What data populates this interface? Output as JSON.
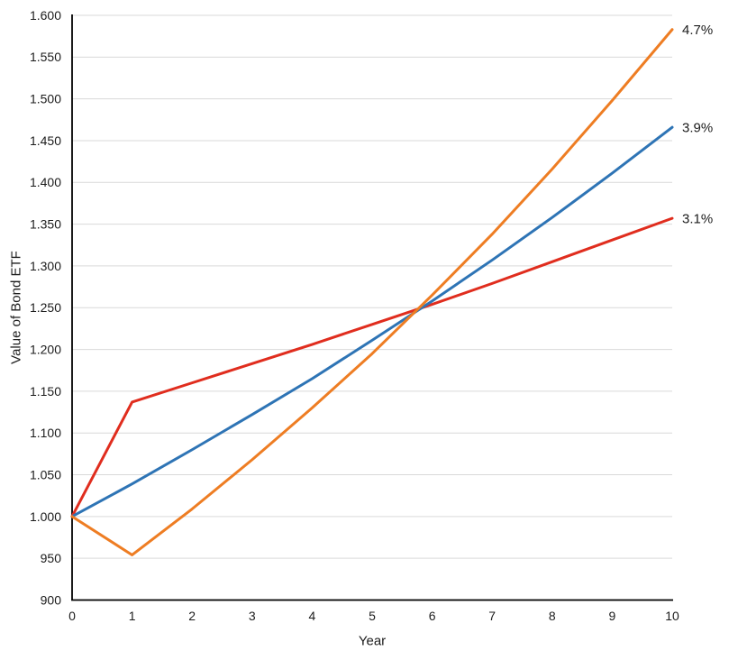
{
  "chart_data": {
    "type": "line",
    "title": "",
    "xlabel": "Year",
    "ylabel": "Value of Bond ETF",
    "xlim": [
      0,
      10
    ],
    "ylim": [
      0.9,
      1.6
    ],
    "grid": "horizontal-only",
    "legend_position": "line-end-labels-right",
    "x": [
      0,
      1,
      2,
      3,
      4,
      5,
      6,
      7,
      8,
      9,
      10
    ],
    "x_tick_labels": [
      "0",
      "1",
      "2",
      "3",
      "4",
      "5",
      "6",
      "7",
      "8",
      "9",
      "10"
    ],
    "y_tick_values": [
      0.9,
      0.95,
      1.0,
      1.05,
      1.1,
      1.15,
      1.2,
      1.25,
      1.3,
      1.35,
      1.4,
      1.45,
      1.5,
      1.55,
      1.6
    ],
    "y_tick_labels": [
      "900",
      "950",
      "1.000",
      "1.050",
      "1.100",
      "1.150",
      "1.200",
      "1.250",
      "1.300",
      "1.350",
      "1.400",
      "1.450",
      "1.500",
      "1.550",
      "1.600"
    ],
    "series": [
      {
        "name": "4.7%",
        "color": "#EE7D23",
        "values": [
          1.0,
          0.954,
          1.009,
          1.068,
          1.13,
          1.195,
          1.265,
          1.338,
          1.416,
          1.498,
          1.583
        ]
      },
      {
        "name": "3.9%",
        "color": "#2E74B5",
        "values": [
          1.0,
          1.039,
          1.08,
          1.122,
          1.165,
          1.211,
          1.258,
          1.307,
          1.358,
          1.411,
          1.466
        ]
      },
      {
        "name": "3.1%",
        "color": "#E02D1E",
        "values": [
          1.0,
          1.137,
          1.16,
          1.183,
          1.206,
          1.23,
          1.254,
          1.279,
          1.305,
          1.331,
          1.357
        ]
      }
    ],
    "annotations": {
      "crossing_point": {
        "x": 5.8,
        "y": 1.25
      }
    }
  },
  "colors": {
    "background": "#ffffff",
    "grid": "#d9d9d9",
    "axis": "#000000",
    "text": "#1c1c1c"
  }
}
